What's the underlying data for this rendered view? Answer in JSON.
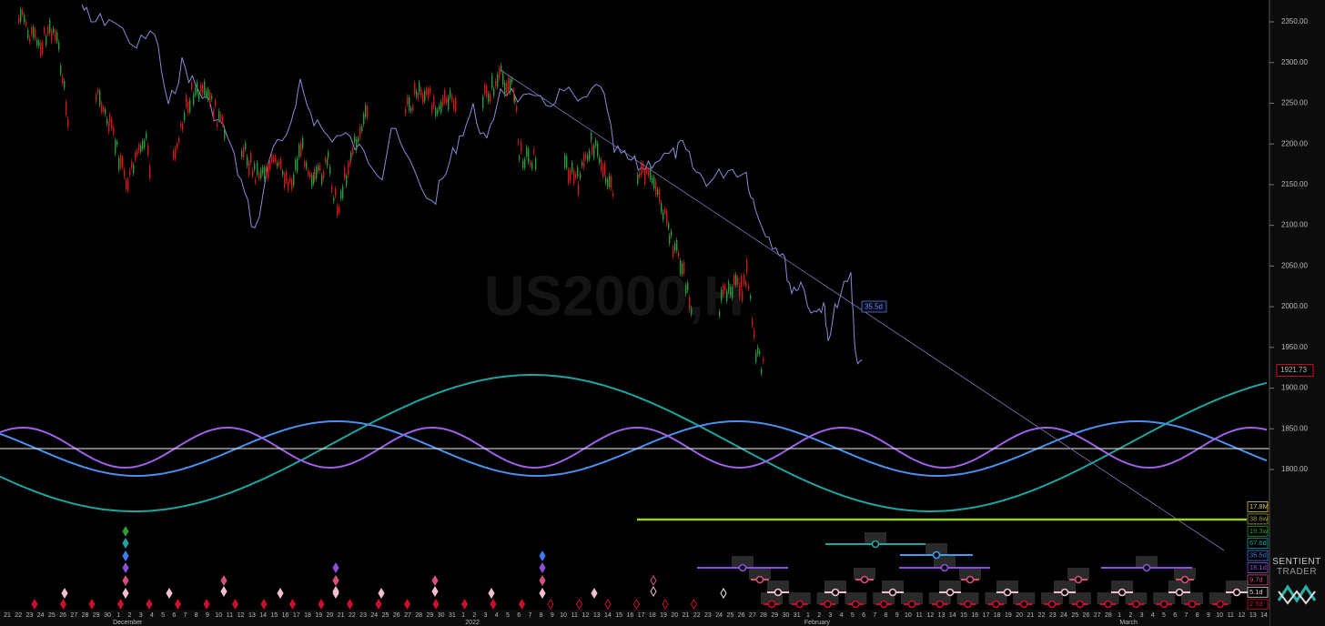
{
  "watermark": "US2000,H",
  "price_axis": {
    "ticks": [
      {
        "value": 2350,
        "label": "2350.00"
      },
      {
        "value": 2300,
        "label": "2300.00"
      },
      {
        "value": 2250,
        "label": "2250.00"
      },
      {
        "value": 2200,
        "label": "2200.00"
      },
      {
        "value": 2150,
        "label": "2150.00"
      },
      {
        "value": 2100,
        "label": "2100.00"
      },
      {
        "value": 2050,
        "label": "2050.00"
      },
      {
        "value": 2000,
        "label": "2000.00"
      },
      {
        "value": 1950,
        "label": "1950.00"
      },
      {
        "value": 1900,
        "label": "1900.00"
      },
      {
        "value": 1850,
        "label": "1850.00"
      },
      {
        "value": 1800,
        "label": "1800.00"
      }
    ],
    "last_price": 1921.73
  },
  "annotation": "35.5d",
  "cycles": [
    {
      "label": "17.8M",
      "color": "#d8c850"
    },
    {
      "label": "38.6w",
      "color": "#9aa040"
    },
    {
      "label": "19.3w",
      "color": "#2e9a3a"
    },
    {
      "label": "67.6d",
      "color": "#1fa5a0"
    },
    {
      "label": "35.5d",
      "color": "#3c7ef0"
    },
    {
      "label": "18.1d",
      "color": "#8c4fd8"
    },
    {
      "label": "9.7d",
      "color": "#d4507a"
    },
    {
      "label": "5.1d",
      "color": "#dddddd"
    },
    {
      "label": "2.5d",
      "color": "#c8102e"
    }
  ],
  "days": [
    "21",
    "22",
    "23",
    "24",
    "25",
    "26",
    "27",
    "28",
    "29",
    "30",
    "1",
    "2",
    "3",
    "4",
    "5",
    "6",
    "7",
    "8",
    "9",
    "10",
    "11",
    "12",
    "13",
    "14",
    "15",
    "16",
    "17",
    "18",
    "19",
    "20",
    "21",
    "22",
    "23",
    "24",
    "25",
    "26",
    "27",
    "28",
    "29",
    "30",
    "31",
    "1",
    "2",
    "3",
    "4",
    "5",
    "6",
    "7",
    "8",
    "9",
    "10",
    "11",
    "12",
    "13",
    "14",
    "15",
    "16",
    "17",
    "18",
    "19",
    "20",
    "21",
    "22",
    "23",
    "24",
    "25",
    "26",
    "27",
    "28",
    "29",
    "30",
    "31",
    "1",
    "2",
    "3",
    "4",
    "5",
    "6",
    "7",
    "8",
    "9",
    "10",
    "11",
    "12",
    "13",
    "14",
    "15",
    "16",
    "17",
    "18",
    "19",
    "20",
    "21",
    "22",
    "23",
    "24",
    "25",
    "26",
    "27",
    "28",
    "1",
    "2",
    "3",
    "4",
    "5",
    "6",
    "7",
    "8",
    "9",
    "10",
    "11",
    "12",
    "13",
    "14"
  ],
  "months": [
    "December",
    "2022",
    "February",
    "March"
  ],
  "logo": {
    "line1": "SENTIENT",
    "line2": "TRADER"
  }
}
